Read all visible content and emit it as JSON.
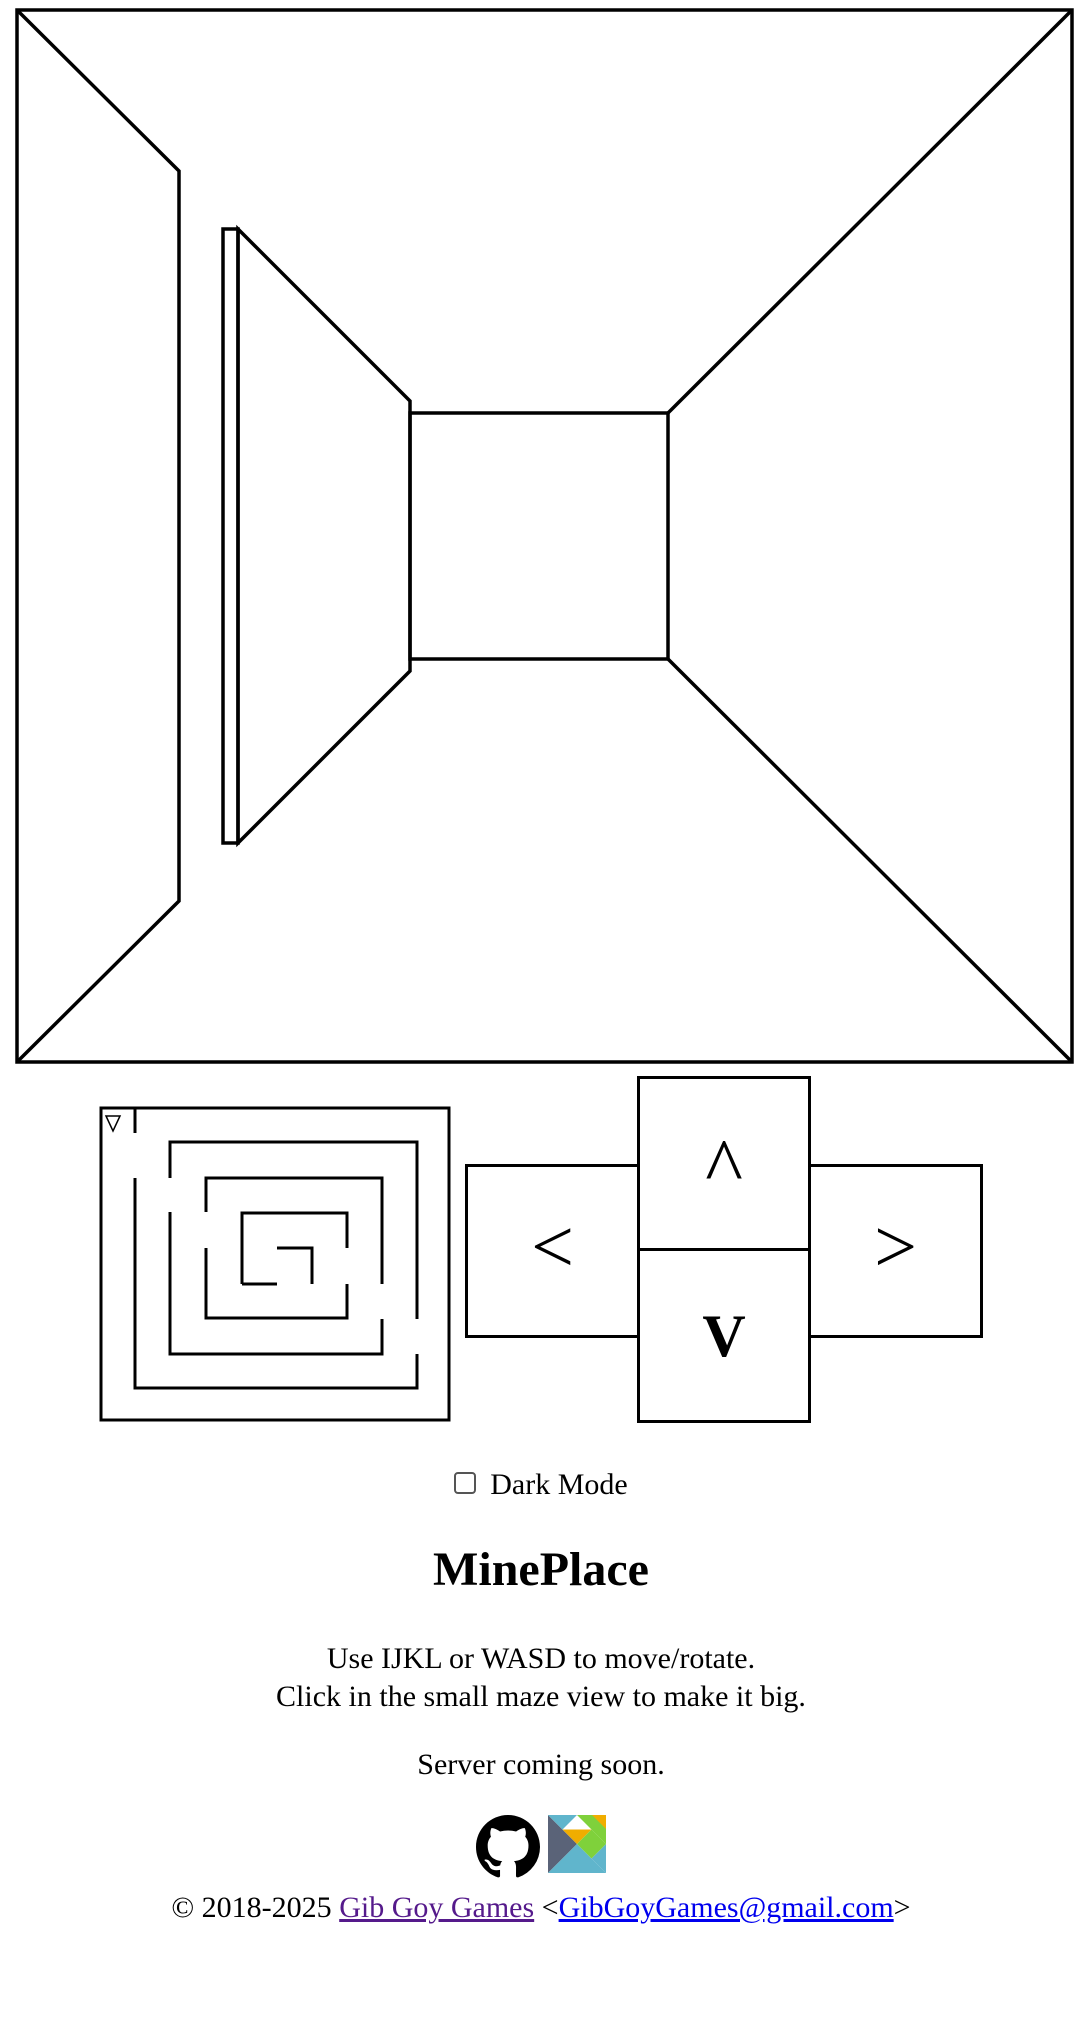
{
  "controls": {
    "up": "^",
    "left": "<",
    "right": ">",
    "down": "V"
  },
  "dark_mode": {
    "label": "Dark Mode",
    "checked": false
  },
  "title": "MinePlace",
  "instructions": {
    "line1": "Use IJKL or WASD to move/rotate.",
    "line2": "Click in the small maze view to make it big."
  },
  "server_note": "Server coming soon.",
  "icons": [
    "github-icon",
    "elm-icon"
  ],
  "footer": {
    "copyright": "© 2018-2025",
    "company_link": "Gib Goy Games",
    "open_bracket": "<",
    "email_link": "GibGoyGames@gmail.com",
    "close_bracket": ">"
  },
  "colors": {
    "link": "#0000ee",
    "visited_link": "#551a8b",
    "line": "#000000",
    "background": "#ffffff"
  }
}
